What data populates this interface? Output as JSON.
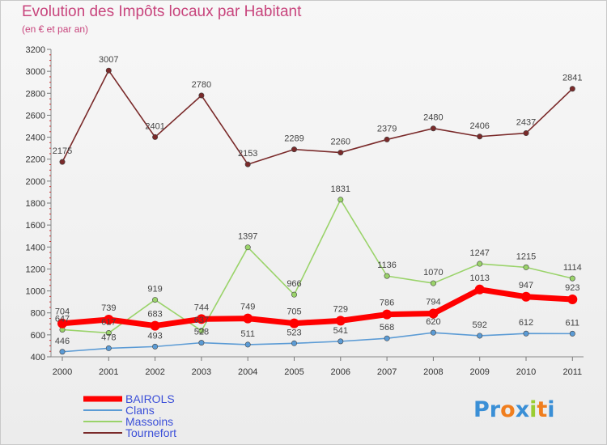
{
  "chart_data": {
    "type": "line",
    "title": "Evolution des Impôts locaux par Habitant",
    "subtitle": "(en € et par an)",
    "x": [
      "2000",
      "2001",
      "2002",
      "2003",
      "2004",
      "2005",
      "2006",
      "2007",
      "2008",
      "2009",
      "2010",
      "2011"
    ],
    "ylim": [
      400,
      3200
    ],
    "yticks": [
      400,
      600,
      800,
      1000,
      1200,
      1400,
      1600,
      1800,
      2000,
      2200,
      2400,
      2600,
      2800,
      3000,
      3200
    ],
    "grid": false,
    "legend_placement": "bottom-left",
    "series": [
      {
        "name": "BAIROLS",
        "color": "#ff0000",
        "values": [
          704,
          739,
          683,
          744,
          749,
          705,
          729,
          786,
          794,
          1013,
          947,
          923
        ]
      },
      {
        "name": "Clans",
        "color": "#5b9bd5",
        "values": [
          446,
          478,
          493,
          528,
          511,
          523,
          541,
          568,
          620,
          592,
          612,
          611
        ]
      },
      {
        "name": "Massoins",
        "color": "#9ad36a",
        "values": [
          647,
          617,
          919,
          637,
          1397,
          966,
          1831,
          1136,
          1070,
          1247,
          1215,
          1114
        ]
      },
      {
        "name": "Tournefort",
        "color": "#7a2a2a",
        "values": [
          2175,
          3007,
          2401,
          2780,
          2153,
          2289,
          2260,
          2379,
          2480,
          2406,
          2437,
          2841
        ]
      }
    ]
  },
  "logo": {
    "letters": [
      "P",
      "r",
      "o",
      "x",
      "i",
      "t",
      "i"
    ],
    "colors": [
      "#3a8fd6",
      "#3a8fd6",
      "#f07e1e",
      "#3a8fd6",
      "#9acd32",
      "#f07e1e",
      "#3a8fd6"
    ]
  }
}
